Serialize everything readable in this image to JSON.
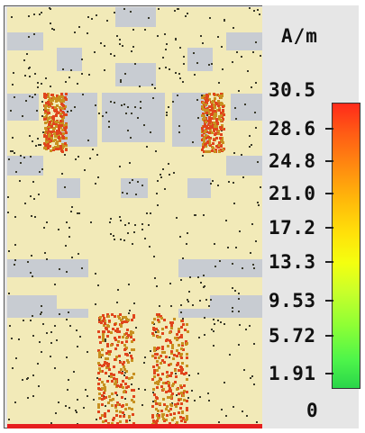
{
  "legend": {
    "unit": "A/m",
    "ticks": [
      "30.5",
      "28.6",
      "24.8",
      "21.0",
      "17.2",
      "13.3",
      "9.53",
      "5.72",
      "1.91",
      "0"
    ]
  },
  "colors": {
    "patch": "#f2eab8",
    "background": "#c8ccd2",
    "arrow_low": "#3a3a2a",
    "arrow_high": "#e0451c",
    "feed": "#e61e1e"
  },
  "icons": [
    "current-arrow-icon"
  ]
}
